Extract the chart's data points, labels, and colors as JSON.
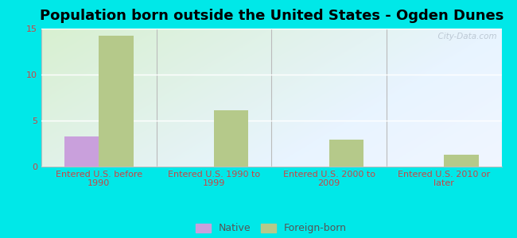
{
  "title": "Population born outside the United States - Ogden Dunes",
  "categories": [
    "Entered U.S. before\n1990",
    "Entered U.S. 1990 to\n1999",
    "Entered U.S. 2000 to\n2009",
    "Entered U.S. 2010 or\nlater"
  ],
  "native_values": [
    3.3,
    0,
    0,
    0
  ],
  "foreign_values": [
    14.2,
    6.1,
    2.9,
    1.3
  ],
  "native_color": "#c9a0dc",
  "foreign_color": "#b5c98a",
  "background_color": "#00e8e8",
  "plot_bg_color_top_left": "#d8f0d0",
  "plot_bg_color_bottom_right": "#e8f4ff",
  "ylim": [
    0,
    15
  ],
  "yticks": [
    0,
    5,
    10,
    15
  ],
  "bar_width": 0.3,
  "title_fontsize": 13,
  "tick_label_fontsize": 8,
  "legend_fontsize": 9,
  "watermark_text": "  City-Data.com",
  "axis_label_color": "#cc4444",
  "tick_color": "#cc4444",
  "grid_color": "#ffffff",
  "spine_color": "#bbbbbb"
}
